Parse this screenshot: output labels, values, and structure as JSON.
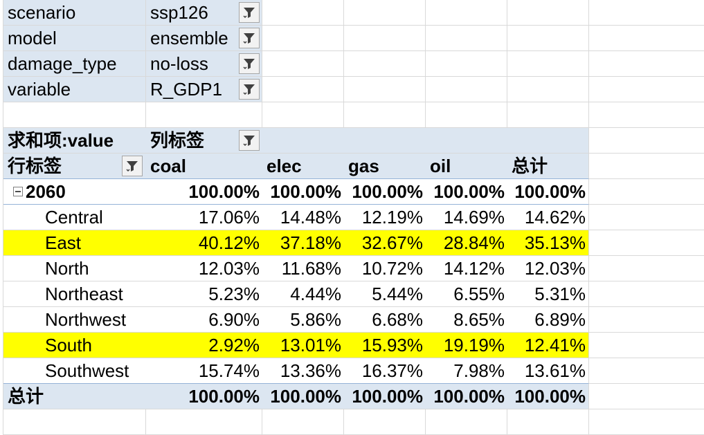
{
  "filters": [
    {
      "field": "scenario",
      "value": "ssp126"
    },
    {
      "field": "model",
      "value": "ensemble"
    },
    {
      "field": "damage_type",
      "value": "no-loss"
    },
    {
      "field": "variable",
      "value": "R_GDP1"
    }
  ],
  "pivot": {
    "value_label": "求和项:value",
    "col_label": "列标签",
    "row_label": "行标签",
    "columns": [
      "coal",
      "elec",
      "gas",
      "oil",
      "总计"
    ],
    "group": {
      "label": "2060",
      "values": [
        "100.00%",
        "100.00%",
        "100.00%",
        "100.00%",
        "100.00%"
      ]
    },
    "rows": [
      {
        "label": "Central",
        "values": [
          "17.06%",
          "14.48%",
          "12.19%",
          "14.69%",
          "14.62%"
        ]
      },
      {
        "label": "East",
        "values": [
          "40.12%",
          "37.18%",
          "32.67%",
          "28.84%",
          "35.13%"
        ]
      },
      {
        "label": "North",
        "values": [
          "12.03%",
          "11.68%",
          "10.72%",
          "14.12%",
          "12.03%"
        ]
      },
      {
        "label": "Northeast",
        "values": [
          "5.23%",
          "4.44%",
          "5.44%",
          "6.55%",
          "5.31%"
        ]
      },
      {
        "label": "Northwest",
        "values": [
          "6.90%",
          "5.86%",
          "6.68%",
          "8.65%",
          "6.89%"
        ]
      },
      {
        "label": "South",
        "values": [
          "2.92%",
          "13.01%",
          "15.93%",
          "19.19%",
          "12.41%"
        ]
      },
      {
        "label": "Southwest",
        "values": [
          "15.74%",
          "13.36%",
          "16.37%",
          "7.98%",
          "13.61%"
        ]
      }
    ],
    "total": {
      "label": "总计",
      "values": [
        "100.00%",
        "100.00%",
        "100.00%",
        "100.00%",
        "100.00%"
      ]
    }
  },
  "highlight": {
    "color": "#ffff00",
    "rows": [
      "East",
      "South"
    ]
  },
  "header_fill": "#dce6f1",
  "icons": {
    "filter": "filter-funnel-icon",
    "collapse": "collapse-minus-icon"
  }
}
